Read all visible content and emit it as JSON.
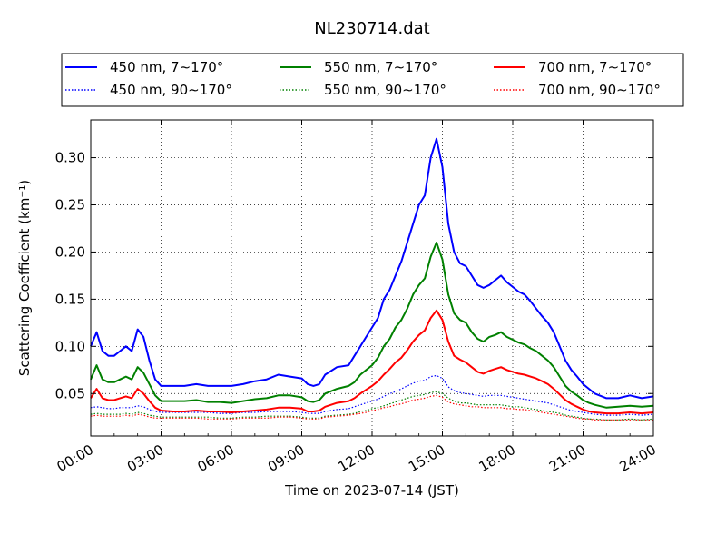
{
  "chart_data": {
    "type": "line",
    "title": "NL230714.dat",
    "xlabel": "Time on 2023-07-14 (JST)",
    "ylabel": "Scattering Coefficient (km⁻¹)",
    "x_ticks": [
      "00:00",
      "03:00",
      "06:00",
      "09:00",
      "12:00",
      "15:00",
      "18:00",
      "21:00",
      "24:00"
    ],
    "xlim_hours": [
      0,
      24
    ],
    "ylim": [
      0.005,
      0.34
    ],
    "y_ticks": [
      "0.05",
      "0.10",
      "0.15",
      "0.20",
      "0.25",
      "0.30"
    ],
    "grid": true,
    "legend_position": "top",
    "legend_columns": 3,
    "x": [
      0.0,
      0.25,
      0.5,
      0.75,
      1.0,
      1.25,
      1.5,
      1.75,
      2.0,
      2.25,
      2.5,
      2.75,
      3.0,
      3.5,
      4.0,
      4.5,
      5.0,
      5.5,
      6.0,
      6.5,
      7.0,
      7.5,
      8.0,
      8.5,
      9.0,
      9.25,
      9.5,
      9.75,
      10.0,
      10.5,
      11.0,
      11.25,
      11.5,
      11.75,
      12.0,
      12.25,
      12.5,
      12.75,
      13.0,
      13.25,
      13.5,
      13.75,
      14.0,
      14.25,
      14.5,
      14.75,
      15.0,
      15.25,
      15.5,
      15.75,
      16.0,
      16.25,
      16.5,
      16.75,
      17.0,
      17.25,
      17.5,
      17.75,
      18.0,
      18.25,
      18.5,
      18.75,
      19.0,
      19.25,
      19.5,
      19.75,
      20.0,
      20.25,
      20.5,
      20.75,
      21.0,
      21.25,
      21.5,
      22.0,
      22.5,
      23.0,
      23.5,
      24.0
    ],
    "series": [
      {
        "name": "450 nm, 7∼170°",
        "color": "#0000ff",
        "style": "solid",
        "values": [
          0.1,
          0.115,
          0.095,
          0.09,
          0.09,
          0.095,
          0.1,
          0.095,
          0.118,
          0.11,
          0.085,
          0.065,
          0.058,
          0.058,
          0.058,
          0.06,
          0.058,
          0.058,
          0.058,
          0.06,
          0.063,
          0.065,
          0.07,
          0.068,
          0.066,
          0.06,
          0.058,
          0.06,
          0.07,
          0.078,
          0.08,
          0.09,
          0.1,
          0.11,
          0.12,
          0.13,
          0.15,
          0.16,
          0.175,
          0.19,
          0.21,
          0.23,
          0.25,
          0.26,
          0.3,
          0.32,
          0.29,
          0.23,
          0.2,
          0.188,
          0.185,
          0.175,
          0.165,
          0.162,
          0.165,
          0.17,
          0.175,
          0.168,
          0.163,
          0.158,
          0.155,
          0.148,
          0.14,
          0.132,
          0.125,
          0.115,
          0.1,
          0.085,
          0.075,
          0.068,
          0.06,
          0.055,
          0.05,
          0.045,
          0.045,
          0.048,
          0.045,
          0.047
        ]
      },
      {
        "name": "550 nm, 7∼170°",
        "color": "#008000",
        "style": "solid",
        "values": [
          0.065,
          0.08,
          0.065,
          0.062,
          0.062,
          0.065,
          0.068,
          0.065,
          0.078,
          0.072,
          0.06,
          0.048,
          0.042,
          0.042,
          0.042,
          0.043,
          0.041,
          0.041,
          0.04,
          0.042,
          0.044,
          0.045,
          0.048,
          0.048,
          0.046,
          0.042,
          0.041,
          0.043,
          0.05,
          0.055,
          0.058,
          0.062,
          0.07,
          0.075,
          0.08,
          0.088,
          0.1,
          0.108,
          0.12,
          0.128,
          0.14,
          0.155,
          0.165,
          0.172,
          0.195,
          0.21,
          0.192,
          0.155,
          0.135,
          0.128,
          0.125,
          0.115,
          0.108,
          0.105,
          0.11,
          0.112,
          0.115,
          0.11,
          0.107,
          0.104,
          0.102,
          0.098,
          0.095,
          0.09,
          0.085,
          0.078,
          0.068,
          0.058,
          0.052,
          0.048,
          0.043,
          0.04,
          0.038,
          0.035,
          0.036,
          0.037,
          0.036,
          0.037
        ]
      },
      {
        "name": "700 nm, 7∼170°",
        "color": "#ff0000",
        "style": "solid",
        "values": [
          0.045,
          0.055,
          0.045,
          0.043,
          0.043,
          0.045,
          0.047,
          0.045,
          0.055,
          0.05,
          0.042,
          0.035,
          0.032,
          0.031,
          0.031,
          0.032,
          0.031,
          0.031,
          0.03,
          0.031,
          0.032,
          0.033,
          0.035,
          0.035,
          0.034,
          0.031,
          0.031,
          0.032,
          0.036,
          0.04,
          0.042,
          0.045,
          0.05,
          0.054,
          0.058,
          0.063,
          0.07,
          0.076,
          0.083,
          0.088,
          0.096,
          0.105,
          0.112,
          0.117,
          0.13,
          0.138,
          0.128,
          0.105,
          0.09,
          0.086,
          0.083,
          0.078,
          0.073,
          0.071,
          0.074,
          0.076,
          0.078,
          0.075,
          0.073,
          0.071,
          0.07,
          0.068,
          0.066,
          0.063,
          0.06,
          0.055,
          0.049,
          0.043,
          0.039,
          0.036,
          0.033,
          0.031,
          0.03,
          0.029,
          0.029,
          0.03,
          0.029,
          0.03
        ]
      },
      {
        "name": "450 nm, 90∼170°",
        "color": "#0000ff",
        "style": "dotted",
        "values": [
          0.035,
          0.036,
          0.035,
          0.034,
          0.034,
          0.035,
          0.035,
          0.035,
          0.037,
          0.036,
          0.033,
          0.031,
          0.03,
          0.03,
          0.03,
          0.03,
          0.03,
          0.029,
          0.029,
          0.03,
          0.03,
          0.031,
          0.031,
          0.031,
          0.03,
          0.029,
          0.029,
          0.029,
          0.031,
          0.033,
          0.034,
          0.036,
          0.038,
          0.04,
          0.042,
          0.044,
          0.047,
          0.05,
          0.052,
          0.055,
          0.058,
          0.061,
          0.063,
          0.064,
          0.068,
          0.069,
          0.066,
          0.057,
          0.053,
          0.051,
          0.05,
          0.049,
          0.048,
          0.047,
          0.048,
          0.048,
          0.048,
          0.047,
          0.046,
          0.045,
          0.044,
          0.043,
          0.042,
          0.041,
          0.04,
          0.038,
          0.036,
          0.034,
          0.032,
          0.031,
          0.03,
          0.029,
          0.028,
          0.027,
          0.027,
          0.028,
          0.027,
          0.028
        ]
      },
      {
        "name": "550 nm, 90∼170°",
        "color": "#008000",
        "style": "dotted",
        "values": [
          0.028,
          0.029,
          0.028,
          0.028,
          0.028,
          0.028,
          0.029,
          0.028,
          0.03,
          0.029,
          0.027,
          0.026,
          0.025,
          0.025,
          0.025,
          0.025,
          0.025,
          0.024,
          0.024,
          0.025,
          0.025,
          0.026,
          0.026,
          0.026,
          0.025,
          0.024,
          0.024,
          0.024,
          0.026,
          0.027,
          0.028,
          0.029,
          0.031,
          0.032,
          0.034,
          0.035,
          0.037,
          0.039,
          0.041,
          0.043,
          0.045,
          0.047,
          0.048,
          0.049,
          0.051,
          0.052,
          0.05,
          0.045,
          0.042,
          0.04,
          0.04,
          0.039,
          0.038,
          0.038,
          0.038,
          0.038,
          0.038,
          0.037,
          0.036,
          0.036,
          0.035,
          0.034,
          0.033,
          0.032,
          0.031,
          0.03,
          0.029,
          0.027,
          0.026,
          0.025,
          0.024,
          0.023,
          0.023,
          0.022,
          0.022,
          0.023,
          0.022,
          0.023
        ]
      },
      {
        "name": "700 nm, 90∼170°",
        "color": "#ff0000",
        "style": "dotted",
        "values": [
          0.026,
          0.027,
          0.026,
          0.026,
          0.026,
          0.026,
          0.027,
          0.026,
          0.028,
          0.027,
          0.025,
          0.024,
          0.024,
          0.024,
          0.024,
          0.024,
          0.023,
          0.023,
          0.023,
          0.024,
          0.024,
          0.024,
          0.025,
          0.025,
          0.024,
          0.023,
          0.023,
          0.023,
          0.025,
          0.026,
          0.027,
          0.028,
          0.029,
          0.03,
          0.032,
          0.033,
          0.035,
          0.036,
          0.038,
          0.039,
          0.041,
          0.043,
          0.044,
          0.045,
          0.047,
          0.048,
          0.046,
          0.041,
          0.039,
          0.038,
          0.037,
          0.036,
          0.036,
          0.035,
          0.035,
          0.035,
          0.035,
          0.034,
          0.034,
          0.033,
          0.033,
          0.032,
          0.031,
          0.03,
          0.029,
          0.028,
          0.027,
          0.026,
          0.025,
          0.024,
          0.023,
          0.023,
          0.022,
          0.022,
          0.022,
          0.022,
          0.022,
          0.022
        ]
      }
    ]
  }
}
